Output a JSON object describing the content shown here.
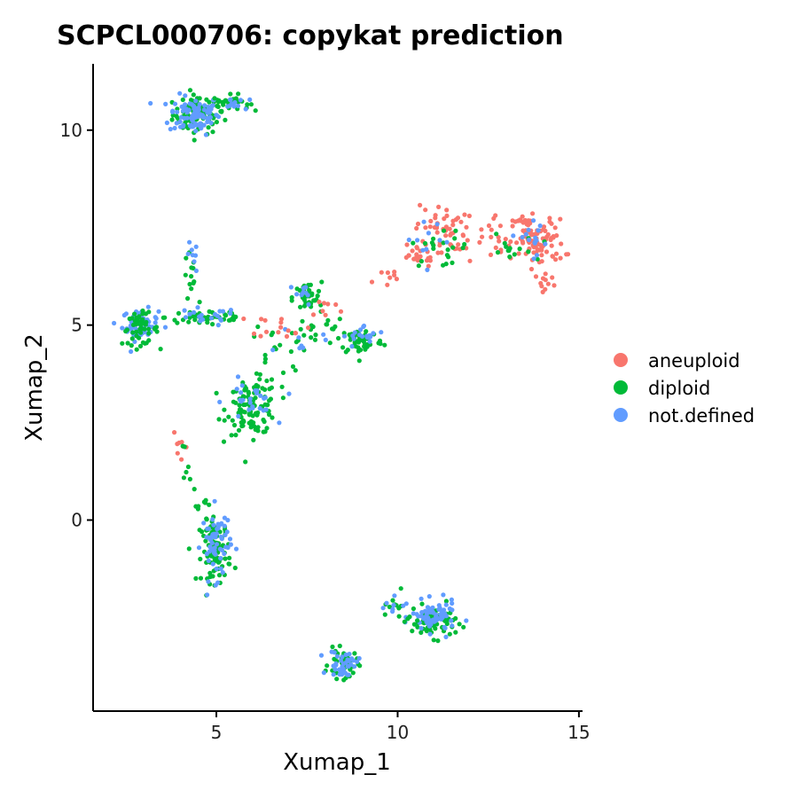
{
  "chart_data": {
    "type": "scatter",
    "title": "SCPCL000706: copykat prediction",
    "xlabel": "Xumap_1",
    "ylabel": "Xumap_2",
    "xlim": [
      1.6,
      15.1
    ],
    "ylim": [
      -4.9,
      11.7
    ],
    "xticks": [
      5,
      10,
      15
    ],
    "yticks": [
      0,
      5,
      10
    ],
    "grid": false,
    "legend_position": "right",
    "series": [
      {
        "name": "aneuploid",
        "color": "#F8766D"
      },
      {
        "name": "diploid",
        "color": "#00BA38"
      },
      {
        "name": "not.defined",
        "color": "#619CFF"
      }
    ],
    "clusters": [
      {
        "series": "diploid",
        "x": 4.5,
        "y": 10.4,
        "sx": 0.35,
        "sy": 0.25,
        "n": 90
      },
      {
        "series": "not.defined",
        "x": 4.4,
        "y": 10.4,
        "sx": 0.35,
        "sy": 0.25,
        "n": 90
      },
      {
        "series": "diploid",
        "x": 5.4,
        "y": 10.7,
        "sx": 0.25,
        "sy": 0.1,
        "n": 30
      },
      {
        "series": "not.defined",
        "x": 5.4,
        "y": 10.7,
        "sx": 0.25,
        "sy": 0.1,
        "n": 12
      },
      {
        "series": "not.defined",
        "x": 2.9,
        "y": 5.0,
        "sx": 0.25,
        "sy": 0.2,
        "n": 60
      },
      {
        "series": "diploid",
        "x": 2.9,
        "y": 4.9,
        "sx": 0.25,
        "sy": 0.2,
        "n": 50
      },
      {
        "series": "diploid",
        "x": 4.8,
        "y": 5.2,
        "sx": 0.6,
        "sy": 0.12,
        "n": 45
      },
      {
        "series": "not.defined",
        "x": 4.6,
        "y": 5.2,
        "sx": 0.5,
        "sy": 0.12,
        "n": 20
      },
      {
        "series": "diploid",
        "x": 4.3,
        "y": 6.2,
        "sx": 0.1,
        "sy": 0.35,
        "n": 12
      },
      {
        "series": "not.defined",
        "x": 4.3,
        "y": 6.7,
        "sx": 0.1,
        "sy": 0.2,
        "n": 8
      },
      {
        "series": "diploid",
        "x": 6.0,
        "y": 2.9,
        "sx": 0.35,
        "sy": 0.35,
        "n": 110
      },
      {
        "series": "not.defined",
        "x": 5.9,
        "y": 3.0,
        "sx": 0.35,
        "sy": 0.3,
        "n": 25
      },
      {
        "series": "diploid",
        "x": 6.6,
        "y": 4.2,
        "sx": 0.35,
        "sy": 0.35,
        "n": 15
      },
      {
        "series": "diploid",
        "x": 7.5,
        "y": 5.7,
        "sx": 0.2,
        "sy": 0.2,
        "n": 35
      },
      {
        "series": "not.defined",
        "x": 7.4,
        "y": 5.8,
        "sx": 0.2,
        "sy": 0.15,
        "n": 10
      },
      {
        "series": "diploid",
        "x": 9.0,
        "y": 4.6,
        "sx": 0.3,
        "sy": 0.18,
        "n": 50
      },
      {
        "series": "not.defined",
        "x": 9.1,
        "y": 4.7,
        "sx": 0.3,
        "sy": 0.15,
        "n": 18
      },
      {
        "series": "diploid",
        "x": 7.6,
        "y": 4.9,
        "sx": 0.5,
        "sy": 0.25,
        "n": 25
      },
      {
        "series": "not.defined",
        "x": 7.3,
        "y": 4.6,
        "sx": 0.3,
        "sy": 0.2,
        "n": 8
      },
      {
        "series": "aneuploid",
        "x": 6.8,
        "y": 5.0,
        "sx": 0.4,
        "sy": 0.15,
        "n": 15
      },
      {
        "series": "aneuploid",
        "x": 8.0,
        "y": 5.4,
        "sx": 0.3,
        "sy": 0.15,
        "n": 8
      },
      {
        "series": "aneuploid",
        "x": 9.6,
        "y": 6.2,
        "sx": 0.3,
        "sy": 0.15,
        "n": 8
      },
      {
        "series": "aneuploid",
        "x": 10.5,
        "y": 6.8,
        "sx": 0.3,
        "sy": 0.15,
        "n": 25
      },
      {
        "series": "aneuploid",
        "x": 11.2,
        "y": 7.5,
        "sx": 0.35,
        "sy": 0.3,
        "n": 40
      },
      {
        "series": "aneuploid",
        "x": 12.2,
        "y": 7.2,
        "sx": 0.45,
        "sy": 0.25,
        "n": 25
      },
      {
        "series": "aneuploid",
        "x": 13.3,
        "y": 7.7,
        "sx": 0.3,
        "sy": 0.08,
        "n": 15
      },
      {
        "series": "aneuploid",
        "x": 13.9,
        "y": 7.1,
        "sx": 0.35,
        "sy": 0.3,
        "n": 90
      },
      {
        "series": "aneuploid",
        "x": 14.1,
        "y": 6.1,
        "sx": 0.15,
        "sy": 0.12,
        "n": 10
      },
      {
        "series": "diploid",
        "x": 11.2,
        "y": 7.0,
        "sx": 0.4,
        "sy": 0.25,
        "n": 20
      },
      {
        "series": "diploid",
        "x": 13.0,
        "y": 6.9,
        "sx": 0.4,
        "sy": 0.2,
        "n": 15
      },
      {
        "series": "not.defined",
        "x": 13.7,
        "y": 7.3,
        "sx": 0.4,
        "sy": 0.25,
        "n": 15
      },
      {
        "series": "not.defined",
        "x": 11.0,
        "y": 7.2,
        "sx": 0.4,
        "sy": 0.25,
        "n": 10
      },
      {
        "series": "aneuploid",
        "x": 4.0,
        "y": 1.8,
        "sx": 0.1,
        "sy": 0.2,
        "n": 8
      },
      {
        "series": "diploid",
        "x": 4.1,
        "y": 1.4,
        "sx": 0.1,
        "sy": 0.3,
        "n": 6
      },
      {
        "series": "diploid",
        "x": 4.6,
        "y": 0.4,
        "sx": 0.12,
        "sy": 0.25,
        "n": 10
      },
      {
        "series": "diploid",
        "x": 5.0,
        "y": -0.8,
        "sx": 0.2,
        "sy": 0.4,
        "n": 90
      },
      {
        "series": "not.defined",
        "x": 5.0,
        "y": -0.6,
        "sx": 0.2,
        "sy": 0.45,
        "n": 60
      },
      {
        "series": "diploid",
        "x": 11.0,
        "y": -2.6,
        "sx": 0.3,
        "sy": 0.2,
        "n": 70
      },
      {
        "series": "not.defined",
        "x": 11.0,
        "y": -2.5,
        "sx": 0.3,
        "sy": 0.2,
        "n": 70
      },
      {
        "series": "diploid",
        "x": 10.0,
        "y": -2.4,
        "sx": 0.3,
        "sy": 0.25,
        "n": 15
      },
      {
        "series": "not.defined",
        "x": 10.0,
        "y": -2.2,
        "sx": 0.3,
        "sy": 0.2,
        "n": 8
      },
      {
        "series": "diploid",
        "x": 8.5,
        "y": -3.7,
        "sx": 0.2,
        "sy": 0.18,
        "n": 45
      },
      {
        "series": "not.defined",
        "x": 8.5,
        "y": -3.7,
        "sx": 0.2,
        "sy": 0.18,
        "n": 40
      }
    ]
  }
}
